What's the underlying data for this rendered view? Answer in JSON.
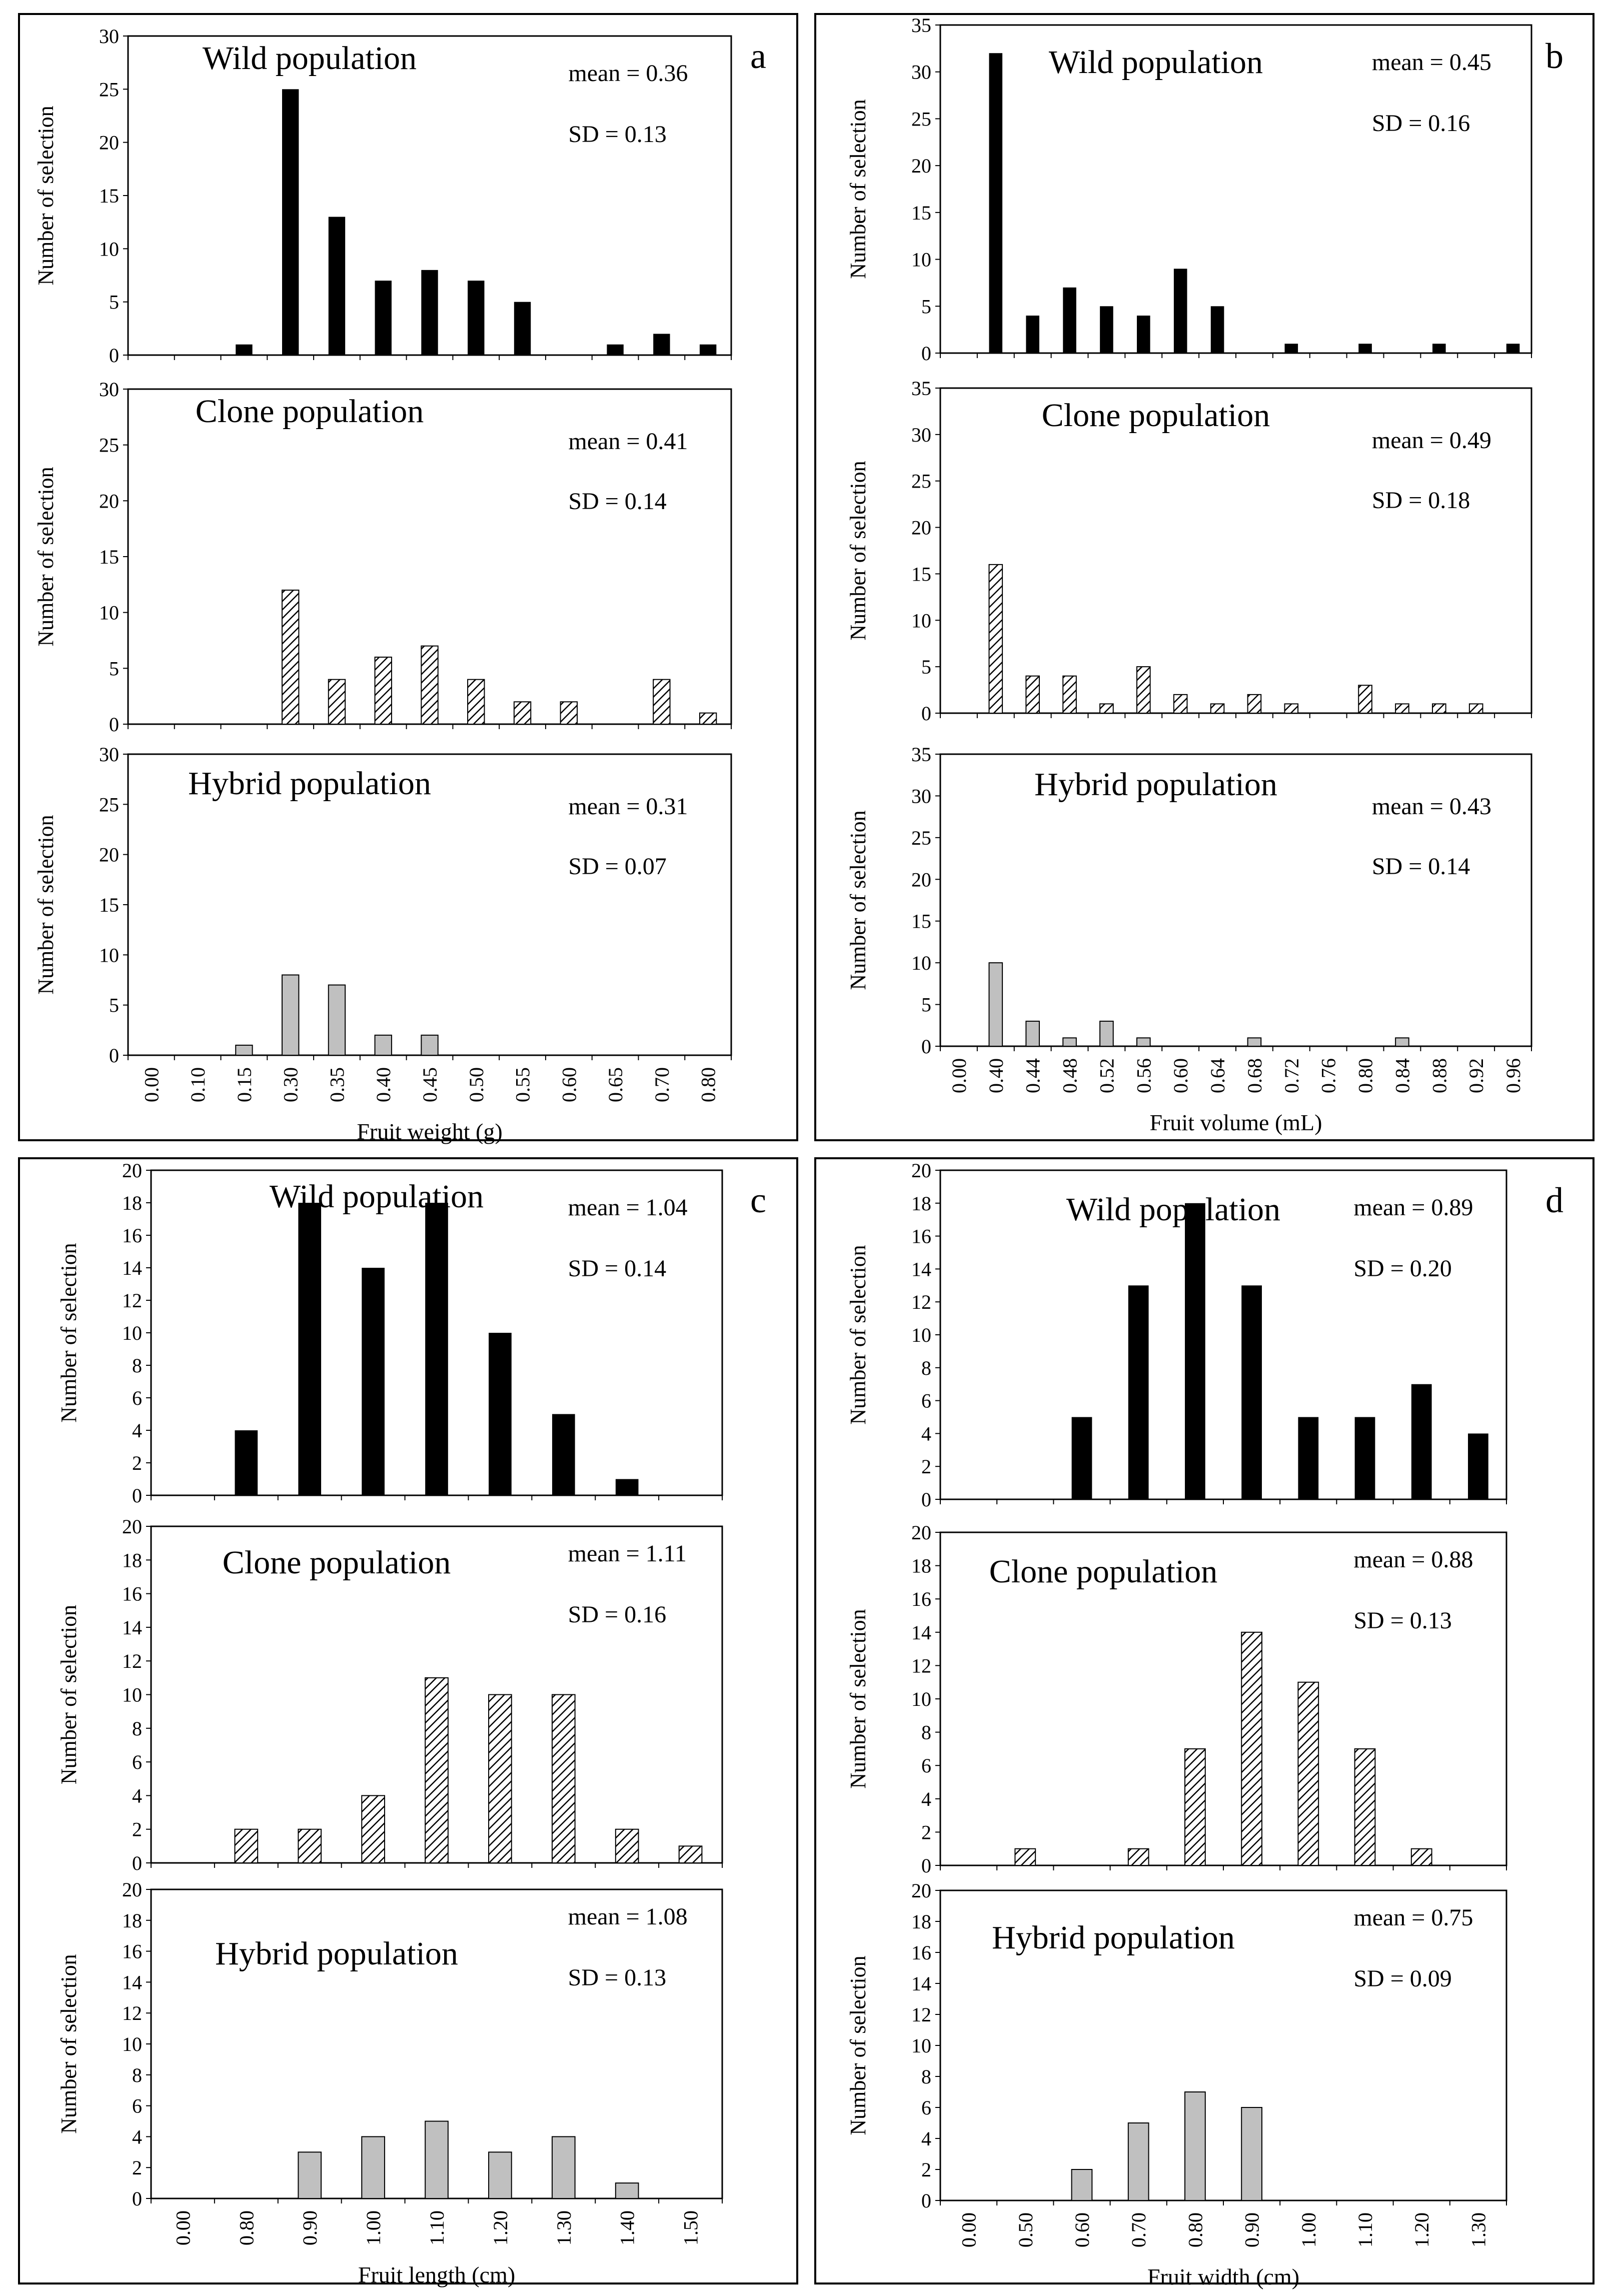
{
  "colors": {
    "wild": "#000000",
    "clone": "#ffffff",
    "clone_hatch": "#000000",
    "hybrid": "#c0c0c0",
    "frame": "#000000"
  },
  "chart_data": [
    {
      "panel": "a",
      "type": "bar",
      "xlabel": "Fruit weight (g)",
      "categories": [
        "0.00",
        "0.10",
        "0.15",
        "0.30",
        "0.35",
        "0.40",
        "0.45",
        "0.50",
        "0.55",
        "0.60",
        "0.65",
        "0.70",
        "0.80"
      ],
      "subplots": [
        {
          "series": "wild",
          "title": "Wild population",
          "mean_label": "mean = 0.36",
          "sd_label": "SD = 0.13",
          "ylabel": "Number of selection",
          "ylim": [
            0,
            30
          ],
          "yticks": [
            "0",
            "5",
            "10",
            "15",
            "20",
            "25",
            "30"
          ],
          "values": [
            0,
            0,
            1,
            25,
            13,
            7,
            8,
            7,
            5,
            0,
            1,
            2,
            1
          ]
        },
        {
          "series": "clone",
          "title": "Clone population",
          "mean_label": "mean = 0.41",
          "sd_label": "SD =  0.14",
          "ylabel": "Number of selection",
          "ylim": [
            0,
            30
          ],
          "yticks": [
            "0",
            "5",
            "10",
            "15",
            "20",
            "25",
            "30"
          ],
          "values": [
            0,
            0,
            0,
            12,
            4,
            6,
            7,
            4,
            2,
            2,
            0,
            4,
            1
          ]
        },
        {
          "series": "hybrid",
          "title": "Hybrid  population",
          "mean_label": "mean = 0.31",
          "sd_label": "SD = 0.07",
          "ylabel": "Number of selection",
          "ylim": [
            0,
            30
          ],
          "yticks": [
            "0",
            "5",
            "10",
            "15",
            "20",
            "25",
            "30"
          ],
          "values": [
            0,
            0,
            1,
            8,
            7,
            2,
            2,
            0,
            0,
            0,
            0,
            0,
            0
          ]
        }
      ]
    },
    {
      "panel": "b",
      "type": "bar",
      "xlabel": "Fruit volume (mL)",
      "categories": [
        "0.00",
        "0.40",
        "0.44",
        "0.48",
        "0.52",
        "0.56",
        "0.60",
        "0.64",
        "0.68",
        "0.72",
        "0.76",
        "0.80",
        "0.84",
        "0.88",
        "0.92",
        "0.96"
      ],
      "subplots": [
        {
          "series": "wild",
          "title": "Wild population",
          "mean_label": "mean = 0.45",
          "sd_label": "SD = 0.16",
          "ylabel": "Number of selection",
          "ylim": [
            0,
            35
          ],
          "yticks": [
            "0",
            "5",
            "10",
            "15",
            "20",
            "25",
            "30",
            "35"
          ],
          "values": [
            0,
            32,
            4,
            7,
            5,
            4,
            9,
            5,
            0,
            1,
            0,
            1,
            0,
            1,
            0,
            1
          ]
        },
        {
          "series": "clone",
          "title": "Clone population",
          "mean_label": "mean = 0.49",
          "sd_label": "SD = 0.18",
          "ylabel": "Number of selection",
          "ylim": [
            0,
            35
          ],
          "yticks": [
            "0",
            "5",
            "10",
            "15",
            "20",
            "25",
            "30",
            "35"
          ],
          "values": [
            0,
            16,
            4,
            4,
            1,
            5,
            2,
            1,
            2,
            1,
            0,
            3,
            1,
            1,
            1,
            0
          ]
        },
        {
          "series": "hybrid",
          "title": "Hybrid  population",
          "mean_label": "mean = 0.43",
          "sd_label": "SD = 0.14",
          "ylabel": "Number of selection",
          "ylim": [
            0,
            35
          ],
          "yticks": [
            "0",
            "5",
            "10",
            "15",
            "20",
            "25",
            "30",
            "35"
          ],
          "values": [
            0,
            10,
            3,
            1,
            3,
            1,
            0,
            0,
            1,
            0,
            0,
            0,
            1,
            0,
            0,
            0
          ]
        }
      ]
    },
    {
      "panel": "c",
      "type": "bar",
      "xlabel": "Fruit length (cm)",
      "categories": [
        "0.00",
        "0.80",
        "0.90",
        "1.00",
        "1.10",
        "1.20",
        "1.30",
        "1.40",
        "1.50"
      ],
      "subplots": [
        {
          "series": "wild",
          "title": "Wild population",
          "mean_label": "mean = 1.04",
          "sd_label": "SD = 0.14",
          "ylabel": "Number of selection",
          "ylim": [
            0,
            20
          ],
          "yticks": [
            "0",
            "2",
            "4",
            "6",
            "8",
            "10",
            "12",
            "14",
            "16",
            "18",
            "20"
          ],
          "values": [
            0,
            4,
            18,
            14,
            18,
            10,
            5,
            1,
            0
          ]
        },
        {
          "series": "clone",
          "title": "Clone population",
          "mean_label": "mean = 1.11",
          "sd_label": "SD = 0.16",
          "ylabel": "Number of selection",
          "ylim": [
            0,
            20
          ],
          "yticks": [
            "0",
            "2",
            "4",
            "6",
            "8",
            "10",
            "12",
            "14",
            "16",
            "18",
            "20"
          ],
          "values": [
            0,
            2,
            2,
            4,
            11,
            10,
            10,
            2,
            1
          ]
        },
        {
          "series": "hybrid",
          "title": "Hybrid  population",
          "mean_label": "mean = 1.08",
          "sd_label": "SD = 0.13",
          "ylabel": "Number of selection",
          "ylim": [
            0,
            20
          ],
          "yticks": [
            "0",
            "2",
            "4",
            "6",
            "8",
            "10",
            "12",
            "14",
            "16",
            "18",
            "20"
          ],
          "values": [
            0,
            0,
            3,
            4,
            5,
            3,
            4,
            1,
            0
          ]
        }
      ]
    },
    {
      "panel": "d",
      "type": "bar",
      "xlabel": "Fruit width (cm)",
      "categories": [
        "0.00",
        "0.50",
        "0.60",
        "0.70",
        "0.80",
        "0.90",
        "1.00",
        "1.10",
        "1.20",
        "1.30"
      ],
      "subplots": [
        {
          "series": "wild",
          "title": "Wild population",
          "mean_label": "mean = 0.89",
          "sd_label": "SD = 0.20",
          "ylabel": "Number of selection",
          "ylim": [
            0,
            20
          ],
          "yticks": [
            "0",
            "2",
            "4",
            "6",
            "8",
            "10",
            "12",
            "14",
            "16",
            "18",
            "20"
          ],
          "values": [
            0,
            0,
            5,
            13,
            18,
            13,
            5,
            5,
            7,
            4
          ]
        },
        {
          "series": "clone",
          "title": "Clone population",
          "mean_label": "mean = 0.88",
          "sd_label": "SD = 0.13",
          "ylabel": "Number of selection",
          "ylim": [
            0,
            20
          ],
          "yticks": [
            "0",
            "2",
            "4",
            "6",
            "8",
            "10",
            "12",
            "14",
            "16",
            "18",
            "20"
          ],
          "values": [
            0,
            1,
            0,
            1,
            7,
            14,
            11,
            7,
            1,
            0
          ]
        },
        {
          "series": "hybrid",
          "title": "Hybrid  population",
          "mean_label": "mean = 0.75",
          "sd_label": "SD = 0.09",
          "ylabel": "Number of selection",
          "ylim": [
            0,
            20
          ],
          "yticks": [
            "0",
            "2",
            "4",
            "6",
            "8",
            "10",
            "12",
            "14",
            "16",
            "18",
            "20"
          ],
          "values": [
            0,
            0,
            2,
            5,
            7,
            6,
            0,
            0,
            0,
            0
          ]
        }
      ]
    }
  ]
}
